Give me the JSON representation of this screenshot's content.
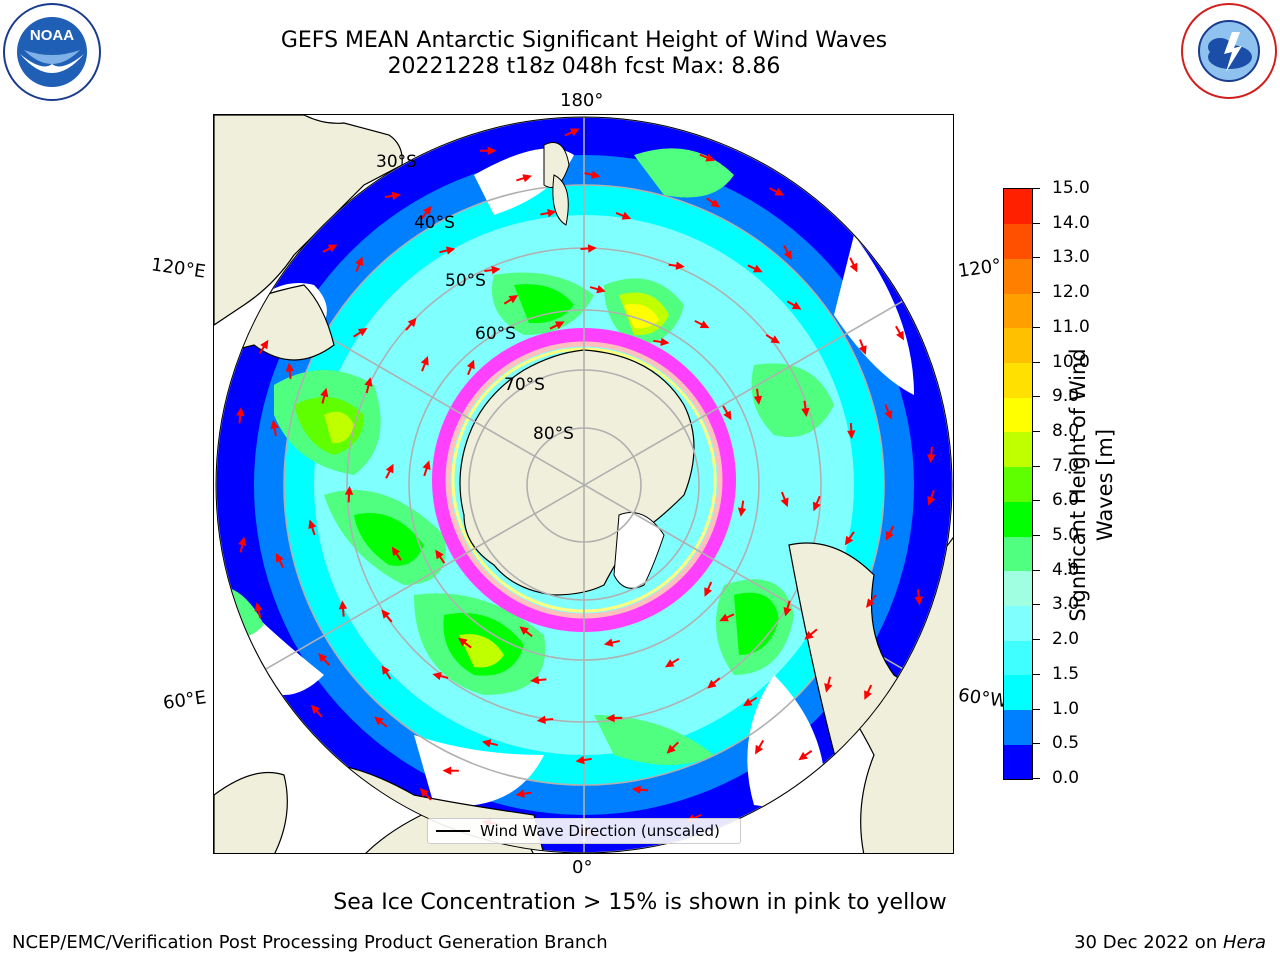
{
  "header": {
    "title_line1": "GEFS MEAN Antarctic Significant Height of Wind Waves",
    "title_line2": "20221228 t18z 048h fcst   Max: 8.86"
  },
  "logos": {
    "left": {
      "text": "NOAA",
      "ring_text": "NATIONAL OCEANIC AND ATMOSPHERIC ADMINISTRATION · U.S. DEPARTMENT OF COMMERCE",
      "icon": "noaa-logo"
    },
    "right": {
      "ring_text": "NATIONAL WEATHER SERVICE",
      "icon": "nws-logo"
    }
  },
  "map": {
    "projection": "south-polar-stereographic",
    "lon_labels": {
      "top": "180°",
      "bottom": "0°",
      "left_upper": "120°E",
      "left_lower": "60°E",
      "right_upper": "120°",
      "right_lower": "60°W"
    },
    "lat_labels": [
      "30°S",
      "40°S",
      "50°S",
      "60°S",
      "70°S",
      "80°S"
    ],
    "legend_label": "Wind Wave Direction (unscaled)"
  },
  "colorbar": {
    "title": "Significant Height of Wind Waves [m]",
    "ticks": [
      "0.0",
      "0.5",
      "1.0",
      "1.5",
      "2.0",
      "3.0",
      "4.0",
      "5.0",
      "6.0",
      "7.0",
      "8.0",
      "9.0",
      "10.0",
      "11.0",
      "12.0",
      "13.0",
      "14.0",
      "15.0"
    ],
    "colors": [
      "#0000ff",
      "#0080ff",
      "#00ffff",
      "#40ffff",
      "#80ffff",
      "#a0ffe0",
      "#50ff80",
      "#00ff00",
      "#60ff00",
      "#c0ff00",
      "#ffff00",
      "#ffe000",
      "#ffc000",
      "#ffa000",
      "#ff8000",
      "#ff5000",
      "#ff2000"
    ]
  },
  "footer": {
    "note": "Sea Ice Concentration > 15% is shown in pink to yellow",
    "credit": "NCEP/EMC/Verification Post Processing Product Generation Branch",
    "date_prefix": "30 Dec 2022 on ",
    "date_machine": "Hera"
  }
}
